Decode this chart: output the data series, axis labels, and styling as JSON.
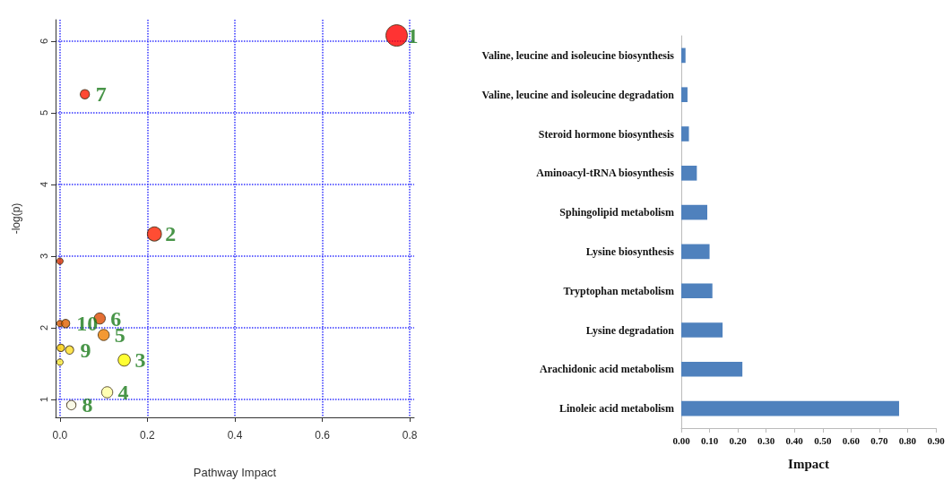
{
  "chart_data": [
    {
      "type": "bubble",
      "xlabel": "Pathway Impact",
      "ylabel": "-log(p)",
      "x": [
        0.77,
        0.057,
        0.216,
        0.0,
        0.091,
        0.0,
        0.013,
        0.1,
        0.002,
        0.022,
        0.0,
        0.147,
        0.108,
        0.026
      ],
      "values": [
        6.08,
        5.26,
        3.31,
        2.93,
        2.13,
        2.06,
        2.06,
        1.9,
        1.72,
        1.69,
        1.52,
        1.55,
        1.1,
        0.92
      ],
      "sizes": [
        1,
        0.19,
        0.43,
        0.09,
        0.27,
        0.09,
        0.15,
        0.27,
        0.12,
        0.15,
        0.09,
        0.32,
        0.27,
        0.19
      ],
      "colors": [
        "#ff0000",
        "#ff1a00",
        "#ff2000",
        "#d83000",
        "#dd4a00",
        "#e05a00",
        "#e06000",
        "#f08000",
        "#ffd000",
        "#ffdd22",
        "#ffee33",
        "#ffff00",
        "#ffffa0",
        "#f8f8e0"
      ],
      "xlim": [
        -0.01,
        0.81
      ],
      "xticks": [
        {
          "value": 0,
          "label": "0.0"
        },
        0.2,
        0.4,
        0.6,
        0.8
      ],
      "ylim": [
        0.75,
        6.3
      ],
      "yticks": [
        1,
        2,
        3,
        4,
        5,
        6
      ],
      "grid": true,
      "annotations": [
        {
          "text": "1",
          "x": 0.77,
          "y": 6.08
        },
        {
          "text": "7",
          "x": 0.057,
          "y": 5.26
        },
        {
          "text": "2",
          "x": 0.216,
          "y": 3.31
        },
        {
          "text": "6",
          "x": 0.091,
          "y": 2.13
        },
        {
          "text": "10",
          "x": 0.013,
          "y": 2.06
        },
        {
          "text": "5",
          "x": 0.1,
          "y": 1.9
        },
        {
          "text": "9",
          "x": 0.022,
          "y": 1.69
        },
        {
          "text": "3",
          "x": 0.147,
          "y": 1.55
        },
        {
          "text": "4",
          "x": 0.108,
          "y": 1.1
        },
        {
          "text": "8",
          "x": 0.026,
          "y": 0.92
        }
      ]
    },
    {
      "type": "bar",
      "orientation": "horizontal",
      "xlabel": "Impact",
      "categories": [
        "Valine, leucine and isoleucine biosynthesis",
        "Valine, leucine and isoleucine degradation",
        "Steroid hormone biosynthesis",
        "Aminoacyl-tRNA biosynthesis",
        "Sphingolipid metabolism",
        "Lysine biosynthesis",
        "Tryptophan metabolism",
        "Lysine degradation",
        "Arachidonic acid metabolism",
        "Linoleic acid metabolism"
      ],
      "values": [
        0.015,
        0.022,
        0.027,
        0.055,
        0.092,
        0.1,
        0.11,
        0.146,
        0.216,
        0.77
      ],
      "color": "#4f81bd",
      "xlim": [
        0,
        0.9
      ],
      "xticks": [
        {
          "value": 0,
          "label": "0.00"
        },
        {
          "value": 0.1,
          "label": "0.10"
        },
        {
          "value": 0.2,
          "label": "0.20"
        },
        {
          "value": 0.3,
          "label": "0.30"
        },
        {
          "value": 0.4,
          "label": "0.40"
        },
        {
          "value": 0.5,
          "label": "0.50"
        },
        {
          "value": 0.6,
          "label": "0.60"
        },
        {
          "value": 0.7,
          "label": "0.70"
        },
        {
          "value": 0.8,
          "label": "0.80"
        },
        {
          "value": 0.9,
          "label": "0.90"
        }
      ]
    }
  ]
}
